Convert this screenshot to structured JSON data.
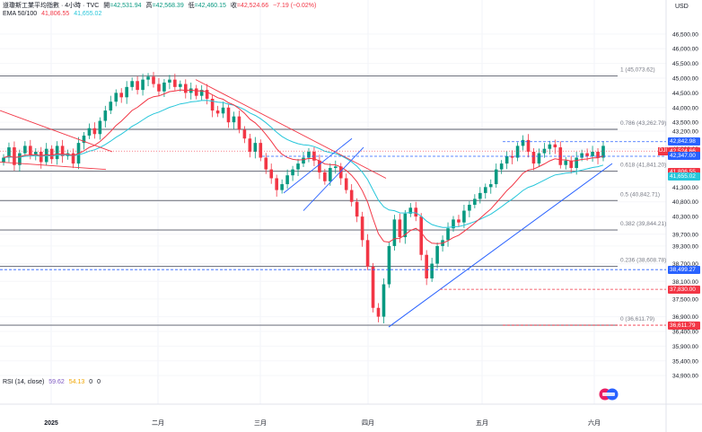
{
  "header": {
    "line1": "道瓊斯工業平均指數 · 4小時 · TVC",
    "open_label": "開",
    "open": "=42,531.94",
    "high_label": "高",
    "high": "=42,568.39",
    "low_label": "低",
    "low": "=42,460.15",
    "close_label": "收",
    "close": "=42,524.66",
    "change": "−7.19 (−0.02%)",
    "ema_label": "EMA 50/100",
    "ema50": "41,806.55",
    "ema100": "41,655.02",
    "rsi_label": "RSI (14, close)",
    "rsi1": "59.62",
    "rsi2": "54.13",
    "rsi3": "0",
    "rsi4": "0"
  },
  "axis": {
    "currency": "USD",
    "y_ticks": [
      "47,000.00",
      "46,500.00",
      "46,000.00",
      "45,500.00",
      "45,000.00",
      "44,500.00",
      "44,000.00",
      "43,500.00",
      "43,200.00",
      "42,600.00",
      "41,300.00",
      "40,800.00",
      "40,300.00",
      "39,700.00",
      "39,300.00",
      "38,700.00",
      "38,100.00",
      "37,500.00",
      "36,900.00",
      "36,400.00",
      "35,900.00",
      "35,400.00",
      "34,900.00"
    ],
    "x_ticks": [
      "2025",
      "二月",
      "三月",
      "四月",
      "五月",
      "六月"
    ]
  },
  "fib_levels": [
    {
      "label": "1 (45,073.62)",
      "value": 45073.62
    },
    {
      "label": "0.786 (43,262.79)",
      "value": 43262.79
    },
    {
      "label": "0.618 (41,841.20)",
      "value": 41841.2
    },
    {
      "label": "0.5 (40,842.71)",
      "value": 40842.71
    },
    {
      "label": "0.382 (39,844.21)",
      "value": 39844.21
    },
    {
      "label": "0.236 (38,608.78)",
      "value": 38608.78
    },
    {
      "label": "0 (36,611.79)",
      "value": 36611.79
    }
  ],
  "price_tags": [
    {
      "text": "42,842.98",
      "color": "#2962ff"
    },
    {
      "text": "42,524.66",
      "color": "#f23645",
      "symbol": "DJI"
    },
    {
      "text": "42,347.00",
      "color": "#2962ff"
    },
    {
      "text": "41,806.55",
      "color": "#f23645"
    },
    {
      "text": "41,655.02",
      "color": "#26c6da"
    },
    {
      "text": "38,499.27",
      "color": "#2962ff"
    },
    {
      "text": "37,830.00",
      "color": "#f23645"
    },
    {
      "text": "36,611.79",
      "color": "#f23645"
    }
  ],
  "colors": {
    "up": "#089981",
    "down": "#f23645",
    "ema50": "#f23645",
    "ema100": "#26c6da",
    "trend": "#2962ff"
  },
  "chart_data": {
    "type": "candlestick",
    "title": "道瓊斯工業平均指數 · 4小時 · TVC",
    "y_unit": "USD",
    "ylim": [
      34700,
      47400
    ],
    "x_labels": [
      "2025",
      "二月",
      "三月",
      "四月",
      "五月",
      "六月"
    ],
    "series": [
      {
        "name": "EMA 50",
        "values_note": "",
        "last": 41806.55
      },
      {
        "name": "EMA 100",
        "last": 41655.02
      }
    ],
    "closes": [
      42300,
      42650,
      42050,
      42450,
      42700,
      42400,
      42500,
      42150,
      42600,
      42250,
      42700,
      42350,
      42450,
      42100,
      42800,
      43050,
      43300,
      43100,
      43550,
      43900,
      44200,
      44500,
      44350,
      44700,
      44900,
      44600,
      44950,
      45050,
      44800,
      44550,
      44850,
      44950,
      44700,
      44800,
      44500,
      44650,
      44400,
      44600,
      44300,
      43900,
      43800,
      44000,
      43500,
      43700,
      43250,
      42950,
      42500,
      42800,
      42300,
      41900,
      41600,
      41200,
      41400,
      41700,
      41900,
      42100,
      42300,
      42500,
      42200,
      41800,
      41500,
      41950,
      42000,
      41600,
      41200,
      40800,
      40300,
      39500,
      38600,
      37200,
      36900,
      38000,
      39300,
      40200,
      39600,
      40400,
      40600,
      40300,
      39000,
      38200,
      38700,
      39300,
      39500,
      39900,
      40200,
      40100,
      40500,
      40700,
      40900,
      41100,
      41300,
      41400,
      41900,
      42100,
      42350,
      42300,
      42700,
      42900,
      42500,
      42100,
      42450,
      42600,
      42750,
      42650,
      42050,
      42200,
      41950,
      42300,
      42450,
      42350,
      42500,
      42300,
      42700
    ]
  }
}
